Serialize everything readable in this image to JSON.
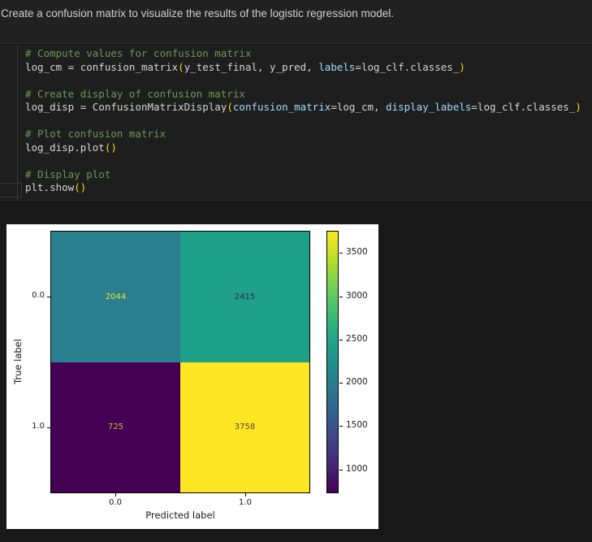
{
  "markdown_cell": {
    "text": "Create a confusion matrix to visualize the results of the logistic regression model."
  },
  "code_cell": {
    "colors": {
      "comment": "#6a9955",
      "default": "#d4d4d4",
      "kwarg": "#9cdcfe",
      "paren": "#ffd700"
    },
    "lines": [
      [
        {
          "t": "# Compute values for confusion matrix",
          "c": "comment"
        }
      ],
      [
        {
          "t": "log_cm = confusion_matrix",
          "c": "default"
        },
        {
          "t": "(",
          "c": "paren"
        },
        {
          "t": "y_test_final, y_pred, ",
          "c": "default"
        },
        {
          "t": "labels",
          "c": "kwarg"
        },
        {
          "t": "=log_clf.classes_",
          "c": "default"
        },
        {
          "t": ")",
          "c": "paren"
        }
      ],
      [],
      [
        {
          "t": "# Create display of confusion matrix",
          "c": "comment"
        }
      ],
      [
        {
          "t": "log_disp = ConfusionMatrixDisplay",
          "c": "default"
        },
        {
          "t": "(",
          "c": "paren"
        },
        {
          "t": "confusion_matrix",
          "c": "kwarg"
        },
        {
          "t": "=log_cm, ",
          "c": "default"
        },
        {
          "t": "display_labels",
          "c": "kwarg"
        },
        {
          "t": "=log_clf.classes_",
          "c": "default"
        },
        {
          "t": ")",
          "c": "paren"
        }
      ],
      [],
      [
        {
          "t": "# Plot confusion matrix",
          "c": "comment"
        }
      ],
      [
        {
          "t": "log_disp.plot",
          "c": "default"
        },
        {
          "t": "()",
          "c": "paren"
        }
      ],
      [],
      [
        {
          "t": "# Display plot",
          "c": "comment"
        }
      ],
      [
        {
          "t": "plt.show",
          "c": "default"
        },
        {
          "t": "()",
          "c": "paren"
        }
      ]
    ]
  },
  "chart_data": {
    "type": "heatmap",
    "title": "",
    "xlabel": "Predicted label",
    "ylabel": "True label",
    "x_ticklabels": [
      "0.0",
      "1.0"
    ],
    "y_ticklabels": [
      "0.0",
      "1.0"
    ],
    "matrix": [
      [
        2044,
        2415
      ],
      [
        725,
        3758
      ]
    ],
    "vmin": 725,
    "vmax": 3758,
    "colormap": "viridis",
    "cell_colors": [
      [
        "#2a7f8e",
        "#1fa088"
      ],
      [
        "#440154",
        "#fde725"
      ]
    ],
    "cell_text_colors": [
      [
        "#e8e23a",
        "#2d2659"
      ],
      [
        "#d9b927",
        "#613a38"
      ]
    ],
    "colorbar": {
      "ticks": [
        3500,
        3000,
        2500,
        2000,
        1500,
        1000
      ],
      "gradient_top_to_bottom": [
        "#fde725",
        "#bddf26",
        "#7ad151",
        "#44bf70",
        "#22a884",
        "#21918c",
        "#2a788e",
        "#355f8d",
        "#414487",
        "#482475",
        "#440154"
      ]
    },
    "legend": "colorbar-right",
    "grid": false
  }
}
